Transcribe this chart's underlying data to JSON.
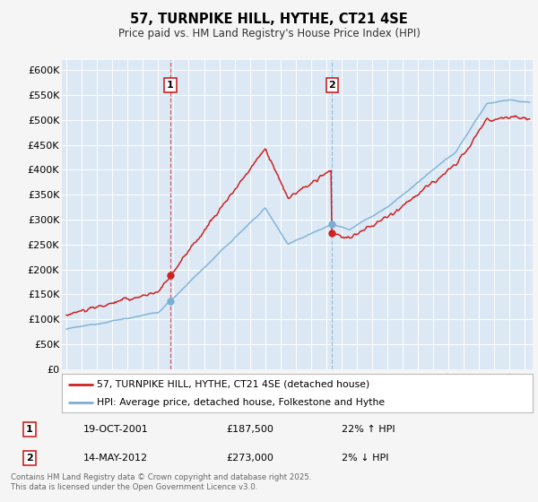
{
  "title": "57, TURNPIKE HILL, HYTHE, CT21 4SE",
  "subtitle": "Price paid vs. HM Land Registry's House Price Index (HPI)",
  "ylim": [
    0,
    620000
  ],
  "yticks": [
    0,
    50000,
    100000,
    150000,
    200000,
    250000,
    300000,
    350000,
    400000,
    450000,
    500000,
    550000,
    600000
  ],
  "ytick_labels": [
    "£0",
    "£50K",
    "£100K",
    "£150K",
    "£200K",
    "£250K",
    "£300K",
    "£350K",
    "£400K",
    "£450K",
    "£500K",
    "£550K",
    "£600K"
  ],
  "bg_color": "#dce9f5",
  "outer_bg_color": "#f5f5f5",
  "line1_color": "#cc2222",
  "line2_color": "#7aaed6",
  "marker1_x": 2001.8,
  "marker2_x": 2012.37,
  "marker1_label": "1",
  "marker2_label": "2",
  "legend_line1": "57, TURNPIKE HILL, HYTHE, CT21 4SE (detached house)",
  "legend_line2": "HPI: Average price, detached house, Folkestone and Hythe",
  "note1_num": "1",
  "note1_date": "19-OCT-2001",
  "note1_price": "£187,500",
  "note1_hpi": "22% ↑ HPI",
  "note2_num": "2",
  "note2_date": "14-MAY-2012",
  "note2_price": "£273,000",
  "note2_hpi": "2% ↓ HPI",
  "footer": "Contains HM Land Registry data © Crown copyright and database right 2025.\nThis data is licensed under the Open Government Licence v3.0.",
  "xmin": 1994.7,
  "xmax": 2025.5
}
